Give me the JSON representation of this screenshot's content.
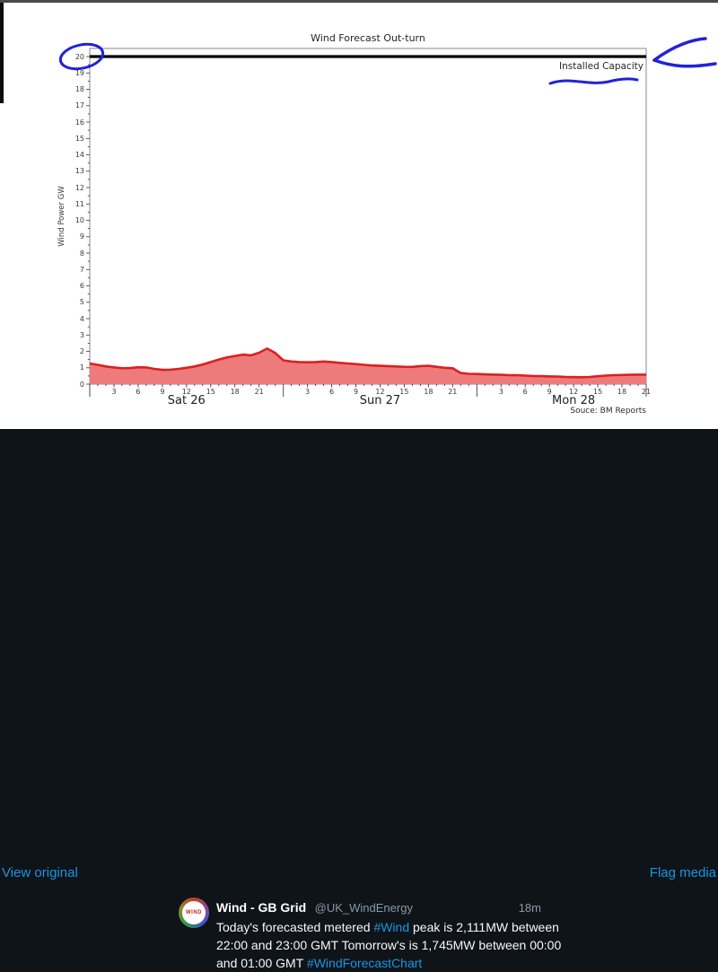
{
  "chart_data": {
    "type": "area",
    "title": "Wind Forecast Out-turn",
    "ylabel": "Wind Power GW",
    "ylim": [
      0,
      20
    ],
    "y_major_tick_step": 1,
    "installed_capacity_label": "Installed Capacity",
    "installed_capacity_gw": 20,
    "source_note": "Souce: BM Reports",
    "x_end_hour": 69,
    "hour_ticks": [
      3,
      6,
      9,
      12,
      15,
      18,
      21
    ],
    "days": [
      {
        "label": "Sat 26",
        "start_hour": 0
      },
      {
        "label": "Sun 27",
        "start_hour": 24
      },
      {
        "label": "Mon 28",
        "start_hour": 48
      }
    ],
    "series": [
      {
        "name": "Wind Out-turn",
        "unit": "GW",
        "sampling": "hourly from Sat 26 00:00 to Mon 28 21:00",
        "values": [
          1.26,
          1.18,
          1.08,
          1.02,
          0.97,
          0.98,
          1.03,
          1.02,
          0.93,
          0.87,
          0.88,
          0.93,
          1.0,
          1.08,
          1.2,
          1.35,
          1.5,
          1.63,
          1.72,
          1.8,
          1.76,
          1.92,
          2.17,
          1.9,
          1.45,
          1.38,
          1.35,
          1.33,
          1.35,
          1.38,
          1.35,
          1.3,
          1.26,
          1.22,
          1.18,
          1.14,
          1.12,
          1.1,
          1.08,
          1.06,
          1.05,
          1.1,
          1.12,
          1.06,
          1.0,
          0.97,
          0.68,
          0.63,
          0.62,
          0.6,
          0.58,
          0.57,
          0.55,
          0.54,
          0.52,
          0.5,
          0.49,
          0.47,
          0.46,
          0.44,
          0.43,
          0.42,
          0.44,
          0.48,
          0.52,
          0.55,
          0.56,
          0.57,
          0.58,
          0.58
        ]
      }
    ],
    "colors": {
      "area_fill": "#ee7b7b",
      "area_line": "#dc2020",
      "capacity_line": "#000000",
      "frame": "#8a8a8a",
      "annotation_blue": "#2222d8"
    },
    "annotations": [
      "hand-drawn blue circle around y-axis value 20",
      "hand-drawn blue underline beneath Installed Capacity",
      "hand-drawn blue arrow pointing left at capacity line"
    ]
  },
  "overlay": {
    "view_original": "View original",
    "flag_media": "Flag media"
  },
  "tweet": {
    "display_name": "Wind - GB Grid",
    "handle": "@UK_WindEnergy",
    "timestamp": "18m",
    "avatar_text": "WIND",
    "body_lines": [
      {
        "segments": [
          {
            "text": "Today's forecasted metered ",
            "link": false
          },
          {
            "text": "#Wind",
            "link": true
          },
          {
            "text": " peak is 2,111MW between",
            "link": false
          }
        ]
      },
      {
        "segments": [
          {
            "text": "22:00 and 23:00 GMT Tomorrow's is 1,745MW between 00:00",
            "link": false
          }
        ]
      },
      {
        "segments": [
          {
            "text": "and 01:00 GMT ",
            "link": false
          },
          {
            "text": "#WindForecastChart",
            "link": true
          }
        ]
      }
    ]
  }
}
